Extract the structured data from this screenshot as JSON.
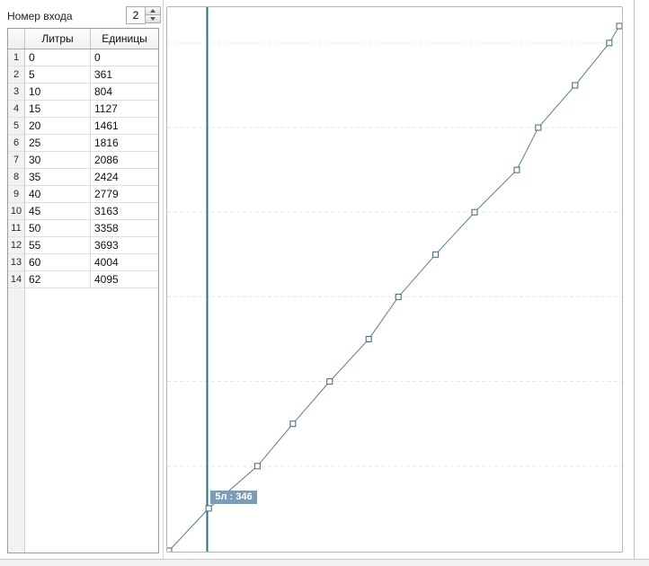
{
  "toolbar": {
    "label": "Номер входа",
    "spin_value": "2"
  },
  "icons": {
    "spin_up": "triangle-up",
    "spin_down": "triangle-down"
  },
  "table": {
    "columns": [
      "Литры",
      "Единицы"
    ],
    "rows": [
      {
        "num": "1",
        "liters": "0",
        "units": "0"
      },
      {
        "num": "2",
        "liters": "5",
        "units": "361"
      },
      {
        "num": "3",
        "liters": "10",
        "units": "804"
      },
      {
        "num": "4",
        "liters": "15",
        "units": "1127"
      },
      {
        "num": "5",
        "liters": "20",
        "units": "1461"
      },
      {
        "num": "6",
        "liters": "25",
        "units": "1816"
      },
      {
        "num": "7",
        "liters": "30",
        "units": "2086"
      },
      {
        "num": "8",
        "liters": "35",
        "units": "2424"
      },
      {
        "num": "9",
        "liters": "40",
        "units": "2779"
      },
      {
        "num": "10",
        "liters": "45",
        "units": "3163"
      },
      {
        "num": "11",
        "liters": "50",
        "units": "3358"
      },
      {
        "num": "12",
        "liters": "55",
        "units": "3693"
      },
      {
        "num": "13",
        "liters": "60",
        "units": "4004"
      },
      {
        "num": "14",
        "liters": "62",
        "units": "4095"
      }
    ]
  },
  "chart_data": {
    "type": "line",
    "title": "",
    "xlabel": "",
    "ylabel": "",
    "x_units": [
      0,
      361,
      804,
      1127,
      1461,
      1816,
      2086,
      2424,
      2779,
      3163,
      3358,
      3693,
      4004,
      4095
    ],
    "y_liters": [
      0,
      5,
      10,
      15,
      20,
      25,
      30,
      35,
      40,
      45,
      50,
      55,
      60,
      62
    ],
    "xlim": [
      0,
      4095
    ],
    "ylim": [
      0,
      62
    ],
    "grid": "horizontal dashed lines every 10 liters",
    "legend": "none",
    "marker": "open-square",
    "cursor": {
      "x_units": 346,
      "y_liters": 5,
      "tooltip": "5л : 346"
    }
  },
  "colors": {
    "series_line": "#5b7d8a",
    "marker_stroke": "#3e6878",
    "marker_fill": "#fbfdfe",
    "cursor_line": "#2c6e80",
    "gridline": "#e6e6e6",
    "tooltip_bg": "#7d9db6",
    "tooltip_text": "#ffffff",
    "chart_border": "#b6b6b6",
    "table_border": "#9b9b9b"
  }
}
